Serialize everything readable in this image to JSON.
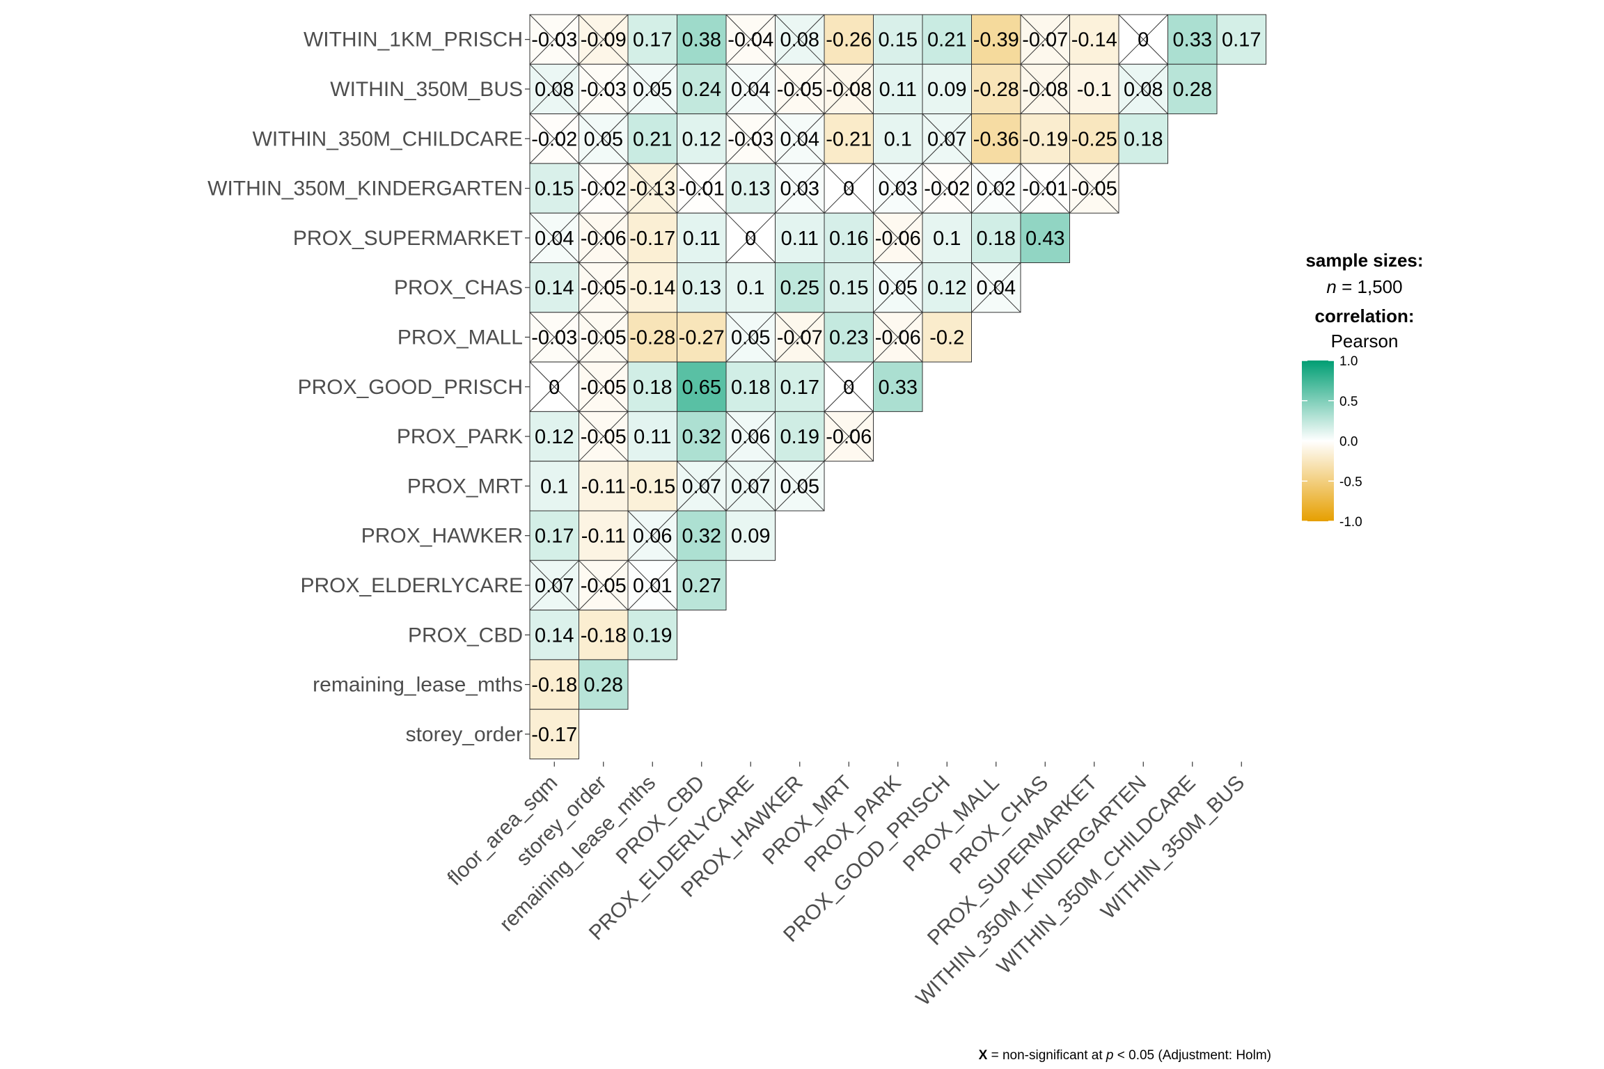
{
  "chart_data": {
    "type": "heatmap",
    "x_labels": [
      "floor_area_sqm",
      "storey_order",
      "remaining_lease_mths",
      "PROX_CBD",
      "PROX_ELDERLYCARE",
      "PROX_HAWKER",
      "PROX_MRT",
      "PROX_PARK",
      "PROX_GOOD_PRISCH",
      "PROX_MALL",
      "PROX_CHAS",
      "PROX_SUPERMARKET",
      "WITHIN_350M_KINDERGARTEN",
      "WITHIN_350M_CHILDCARE",
      "WITHIN_350M_BUS"
    ],
    "y_labels": [
      "WITHIN_1KM_PRISCH",
      "WITHIN_350M_BUS",
      "WITHIN_350M_CHILDCARE",
      "WITHIN_350M_KINDERGARTEN",
      "PROX_SUPERMARKET",
      "PROX_CHAS",
      "PROX_MALL",
      "PROX_GOOD_PRISCH",
      "PROX_PARK",
      "PROX_MRT",
      "PROX_HAWKER",
      "PROX_ELDERLYCARE",
      "PROX_CBD",
      "remaining_lease_mths",
      "storey_order"
    ],
    "values": [
      [
        -0.03,
        -0.09,
        0.17,
        0.38,
        -0.04,
        0.08,
        -0.26,
        0.15,
        0.21,
        -0.39,
        -0.07,
        -0.14,
        0,
        0.33,
        0.17
      ],
      [
        0.08,
        -0.03,
        0.05,
        0.24,
        0.04,
        -0.05,
        -0.08,
        0.11,
        0.09,
        -0.28,
        -0.08,
        -0.1,
        0.08,
        0.28
      ],
      [
        -0.02,
        0.05,
        0.21,
        0.12,
        -0.03,
        0.04,
        -0.21,
        0.1,
        0.07,
        -0.36,
        -0.19,
        -0.25,
        0.18
      ],
      [
        0.15,
        -0.02,
        -0.13,
        -0.01,
        0.13,
        0.03,
        0,
        0.03,
        -0.02,
        0.02,
        -0.01,
        -0.05
      ],
      [
        0.04,
        -0.06,
        -0.17,
        0.11,
        0,
        0.11,
        0.16,
        -0.06,
        0.1,
        0.18,
        0.43
      ],
      [
        0.14,
        -0.05,
        -0.14,
        0.13,
        0.1,
        0.25,
        0.15,
        0.05,
        0.12,
        0.04
      ],
      [
        -0.03,
        -0.05,
        -0.28,
        -0.27,
        0.05,
        -0.07,
        0.23,
        -0.06,
        -0.2
      ],
      [
        0,
        -0.05,
        0.18,
        0.65,
        0.18,
        0.17,
        0,
        0.33
      ],
      [
        0.12,
        -0.05,
        0.11,
        0.32,
        0.06,
        0.19,
        -0.06
      ],
      [
        0.1,
        -0.11,
        -0.15,
        0.07,
        0.07,
        0.05
      ],
      [
        0.17,
        -0.11,
        0.06,
        0.32,
        0.09
      ],
      [
        0.07,
        -0.05,
        0.01,
        0.27
      ],
      [
        0.14,
        -0.18,
        0.19
      ],
      [
        -0.18,
        0.28
      ],
      [
        -0.17
      ]
    ],
    "non_significant": [
      [
        true,
        true,
        false,
        false,
        true,
        true,
        false,
        false,
        false,
        false,
        true,
        false,
        true,
        false,
        false
      ],
      [
        true,
        true,
        true,
        false,
        true,
        true,
        true,
        false,
        false,
        false,
        true,
        false,
        true,
        false
      ],
      [
        true,
        true,
        false,
        false,
        true,
        true,
        false,
        false,
        true,
        false,
        false,
        false,
        false
      ],
      [
        false,
        true,
        true,
        true,
        false,
        true,
        true,
        true,
        true,
        true,
        true,
        true
      ],
      [
        true,
        true,
        false,
        false,
        true,
        false,
        false,
        true,
        false,
        false,
        false
      ],
      [
        false,
        true,
        false,
        false,
        false,
        false,
        false,
        true,
        false,
        true
      ],
      [
        true,
        true,
        false,
        false,
        true,
        true,
        false,
        true,
        false
      ],
      [
        true,
        true,
        false,
        false,
        false,
        false,
        true,
        false
      ],
      [
        false,
        true,
        false,
        false,
        true,
        false,
        true
      ],
      [
        false,
        false,
        false,
        true,
        true,
        true
      ],
      [
        false,
        false,
        true,
        false,
        false
      ],
      [
        true,
        true,
        true,
        false
      ],
      [
        false,
        false,
        false
      ],
      [
        false,
        false
      ],
      [
        false
      ]
    ],
    "color_low": "#E69F00",
    "color_mid": "#FFFFFF",
    "color_high": "#009E73",
    "legend": {
      "sample_title": "sample sizes:",
      "n_italic": "n",
      "n_text": " = 1,500",
      "corr_title": "correlation:",
      "corr_method": "Pearson",
      "range": [
        -1,
        1
      ],
      "ticks": [
        "1.0",
        "0.5",
        "0.0",
        "-0.5",
        "-1.0"
      ]
    },
    "caption": {
      "x_mark": "X",
      "pre": " = non-significant at ",
      "p": "p",
      "post": " < 0.05 (Adjustment: Holm)"
    }
  }
}
